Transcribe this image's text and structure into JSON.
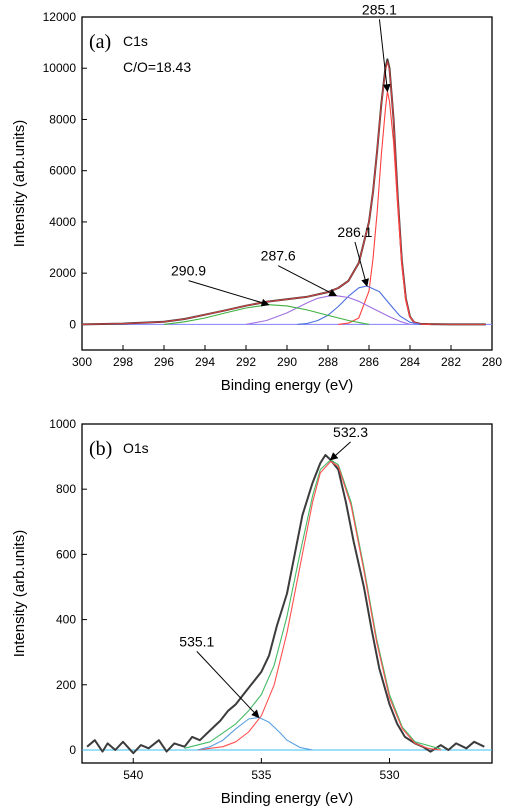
{
  "chart_data": [
    {
      "type": "line",
      "panel_label": "(a)",
      "title": "C1s",
      "subtitle": "C/O=18.43",
      "xlabel": "Binding energy (eV)",
      "ylabel": "Intensity (arb.units)",
      "xlim": [
        300,
        280
      ],
      "ylim": [
        -1000,
        12000
      ],
      "x_reversed": true,
      "xticks": [
        300,
        298,
        296,
        294,
        292,
        290,
        288,
        286,
        284,
        282,
        280
      ],
      "yticks": [
        0,
        2000,
        4000,
        6000,
        8000,
        10000,
        12000
      ],
      "grid": false,
      "colors": {
        "raw": "#3c3c3c",
        "envelope": "#d04040",
        "peak_285_1": "#ff4040",
        "peak_286_1": "#4b6fe0",
        "peak_287_6": "#a070e0",
        "peak_290_9": "#3fb03f",
        "background": "#8080ff"
      },
      "series": [
        {
          "role": "raw",
          "x": [
            300,
            298,
            296,
            295,
            294,
            293,
            292,
            291,
            290,
            289,
            288,
            287.5,
            287,
            286.5,
            286,
            285.8,
            285.6,
            285.4,
            285.2,
            285.1,
            285,
            284.8,
            284.6,
            284.4,
            284.2,
            284,
            283.8,
            283.5,
            283,
            282,
            281,
            280.3
          ],
          "y": [
            0,
            30,
            100,
            210,
            380,
            550,
            730,
            880,
            980,
            1080,
            1260,
            1420,
            1700,
            2400,
            4000,
            5200,
            6800,
            8600,
            10000,
            10350,
            10000,
            8000,
            5000,
            2500,
            1000,
            300,
            80,
            20,
            10,
            0,
            0,
            0
          ]
        },
        {
          "role": "envelope",
          "x": [
            300,
            298,
            296,
            295,
            294,
            293,
            292,
            291,
            290,
            289,
            288,
            287.5,
            287,
            286.5,
            286,
            285.8,
            285.6,
            285.4,
            285.2,
            285.1,
            285,
            284.8,
            284.6,
            284.4,
            284.2,
            284,
            283.8,
            283.5,
            283,
            282,
            281,
            280.3
          ],
          "y": [
            0,
            30,
            100,
            210,
            380,
            550,
            730,
            880,
            980,
            1080,
            1260,
            1420,
            1700,
            2400,
            4000,
            5200,
            6800,
            8600,
            9900,
            10250,
            9950,
            8000,
            5000,
            2500,
            1000,
            300,
            80,
            20,
            10,
            0,
            0,
            0
          ]
        },
        {
          "role": "peak",
          "peak_center": 285.1,
          "x": [
            287.5,
            287,
            286.5,
            286,
            285.8,
            285.6,
            285.4,
            285.2,
            285.1,
            285,
            284.8,
            284.6,
            284.4,
            284.2,
            284,
            283.8,
            283.5,
            283
          ],
          "y": [
            0,
            50,
            250,
            1300,
            2600,
            4400,
            6600,
            8400,
            9100,
            8700,
            7100,
            4600,
            2300,
            900,
            280,
            80,
            10,
            0
          ]
        },
        {
          "role": "peak",
          "peak_center": 286.1,
          "x": [
            289.5,
            289,
            288.5,
            288,
            287.5,
            287,
            286.5,
            286.1,
            285.5,
            285,
            284.5,
            284,
            283.5
          ],
          "y": [
            0,
            40,
            150,
            360,
            700,
            1100,
            1430,
            1500,
            1280,
            800,
            330,
            80,
            0
          ]
        },
        {
          "role": "peak",
          "peak_center": 287.6,
          "x": [
            292,
            291,
            290,
            289,
            288.5,
            288,
            287.6,
            287,
            286.5,
            286,
            285,
            284.5,
            284
          ],
          "y": [
            0,
            150,
            450,
            850,
            1020,
            1100,
            1120,
            1050,
            900,
            700,
            300,
            120,
            0
          ]
        },
        {
          "role": "peak",
          "peak_center": 290.9,
          "x": [
            296,
            295,
            294,
            293,
            292,
            291,
            290.9,
            290,
            289,
            288,
            287,
            286
          ],
          "y": [
            0,
            100,
            250,
            450,
            640,
            760,
            770,
            720,
            560,
            350,
            150,
            0
          ]
        }
      ],
      "annotations": [
        {
          "text": "285.1",
          "x": 285.1,
          "y": 9100
        },
        {
          "text": "286.1",
          "x": 286.1,
          "y": 1500
        },
        {
          "text": "287.6",
          "x": 287.6,
          "y": 1120
        },
        {
          "text": "290.9",
          "x": 290.9,
          "y": 770
        }
      ]
    },
    {
      "type": "line",
      "panel_label": "(b)",
      "title": "O1s",
      "xlabel": "Binding energy (eV)",
      "ylabel": "Intensity (arb.units)",
      "xlim": [
        542,
        526
      ],
      "ylim": [
        -40,
        1000
      ],
      "x_reversed": true,
      "xticks": [
        540,
        535,
        530
      ],
      "yticks": [
        0,
        200,
        400,
        600,
        800,
        1000
      ],
      "grid": false,
      "colors": {
        "raw": "#3c3c3c",
        "envelope": "#44bb66",
        "peak_532_3": "#ff5050",
        "peak_535_1": "#5aa0e0",
        "background": "#3cc0f0"
      },
      "series": [
        {
          "role": "raw",
          "x": [
            541.8,
            541.5,
            541.2,
            541,
            540.7,
            540.4,
            540,
            539.7,
            539.4,
            539,
            538.7,
            538.4,
            538,
            537.7,
            537.4,
            537,
            536.6,
            536.3,
            536,
            535.7,
            535.4,
            535,
            534.7,
            534.4,
            534,
            533.7,
            533.4,
            533,
            532.7,
            532.5,
            532.3,
            532,
            531.7,
            531.4,
            531,
            530.7,
            530.4,
            530,
            529.7,
            529.4,
            529,
            528.7,
            528.4,
            528,
            527.7,
            527.4,
            527,
            526.7,
            526.3
          ],
          "y": [
            10,
            30,
            -5,
            20,
            0,
            25,
            -10,
            15,
            5,
            30,
            -5,
            20,
            10,
            40,
            30,
            60,
            90,
            120,
            140,
            170,
            200,
            240,
            290,
            380,
            480,
            600,
            720,
            820,
            880,
            905,
            890,
            860,
            760,
            640,
            500,
            370,
            250,
            140,
            80,
            40,
            20,
            10,
            -5,
            15,
            0,
            20,
            5,
            25,
            10
          ]
        },
        {
          "role": "envelope",
          "x": [
            538,
            537,
            536,
            535.5,
            535,
            534.5,
            534,
            533.5,
            533,
            532.7,
            532.3,
            532,
            531.5,
            531,
            530.5,
            530,
            529.5,
            529,
            528
          ],
          "y": [
            5,
            25,
            80,
            120,
            170,
            260,
            410,
            600,
            780,
            860,
            890,
            875,
            760,
            560,
            340,
            170,
            70,
            25,
            3
          ]
        },
        {
          "role": "peak",
          "peak_center": 532.3,
          "x": [
            537.5,
            536.5,
            536,
            535.5,
            535,
            534.5,
            534,
            533.5,
            533,
            532.7,
            532.3,
            532,
            531.5,
            531,
            530.5,
            530,
            529.5,
            529,
            528.5,
            528
          ],
          "y": [
            0,
            10,
            25,
            55,
            105,
            200,
            360,
            560,
            760,
            850,
            885,
            870,
            750,
            550,
            330,
            160,
            65,
            20,
            5,
            0
          ]
        },
        {
          "role": "peak",
          "peak_center": 535.1,
          "x": [
            537.5,
            537,
            536.5,
            536,
            535.5,
            535.1,
            534.7,
            534.3,
            534,
            533.5,
            533
          ],
          "y": [
            0,
            10,
            30,
            65,
            95,
            100,
            85,
            55,
            30,
            8,
            0
          ]
        }
      ],
      "annotations": [
        {
          "text": "532.3",
          "x": 532.3,
          "y": 890
        },
        {
          "text": "535.1",
          "x": 535.1,
          "y": 100
        }
      ]
    }
  ]
}
